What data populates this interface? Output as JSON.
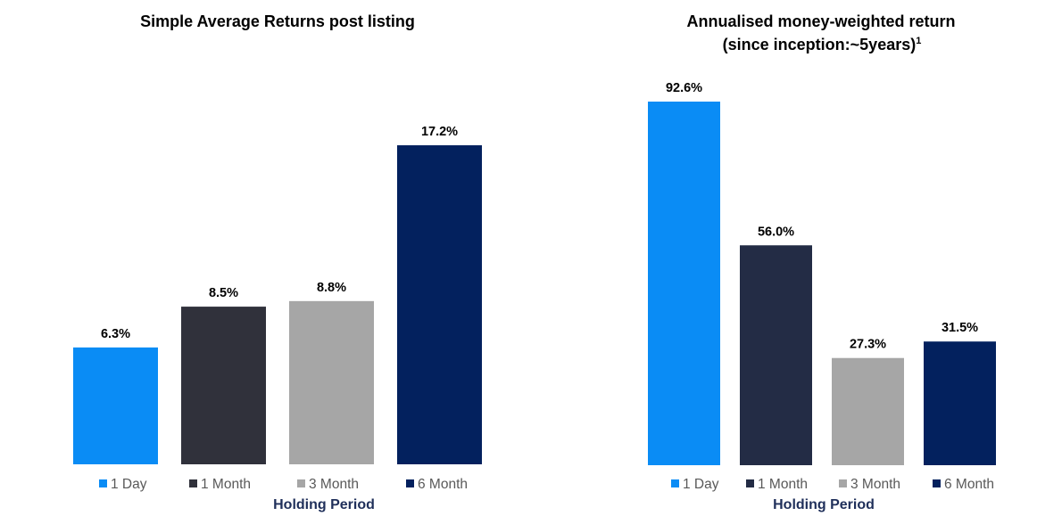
{
  "chart_data": [
    {
      "type": "bar",
      "title": "Simple Average Returns post listing",
      "xlabel": "Holding Period",
      "ylabel": "",
      "categories": [
        "1 Day",
        "1 Month",
        "3 Month",
        "6 Month"
      ],
      "values": [
        6.3,
        8.5,
        8.8,
        17.2
      ],
      "data_labels": [
        "6.3%",
        "8.5%",
        "8.8%",
        "17.2%"
      ],
      "ylim": [
        0,
        20.9
      ],
      "grid": false,
      "legend": "bottom"
    },
    {
      "type": "bar",
      "title": "Annualised money-weighted return",
      "subtitle": "(since inception:~5years)",
      "subtitle_superscript": "1",
      "xlabel": "Holding Period",
      "ylabel": "",
      "categories": [
        "1 Day",
        "1 Month",
        "3 Month",
        "6 Month"
      ],
      "values": [
        92.6,
        56.0,
        27.3,
        31.5
      ],
      "data_labels": [
        "92.6%",
        "56.0%",
        "27.3%",
        "31.5%"
      ],
      "ylim": [
        0,
        92.6
      ],
      "grid": false,
      "legend": "bottom"
    }
  ],
  "colors": {
    "left": [
      "#0a8cf5",
      "#30313b",
      "#a6a6a6",
      "#03215e"
    ],
    "right": [
      "#0a8cf5",
      "#232c45",
      "#a6a6a6",
      "#03215e"
    ]
  }
}
